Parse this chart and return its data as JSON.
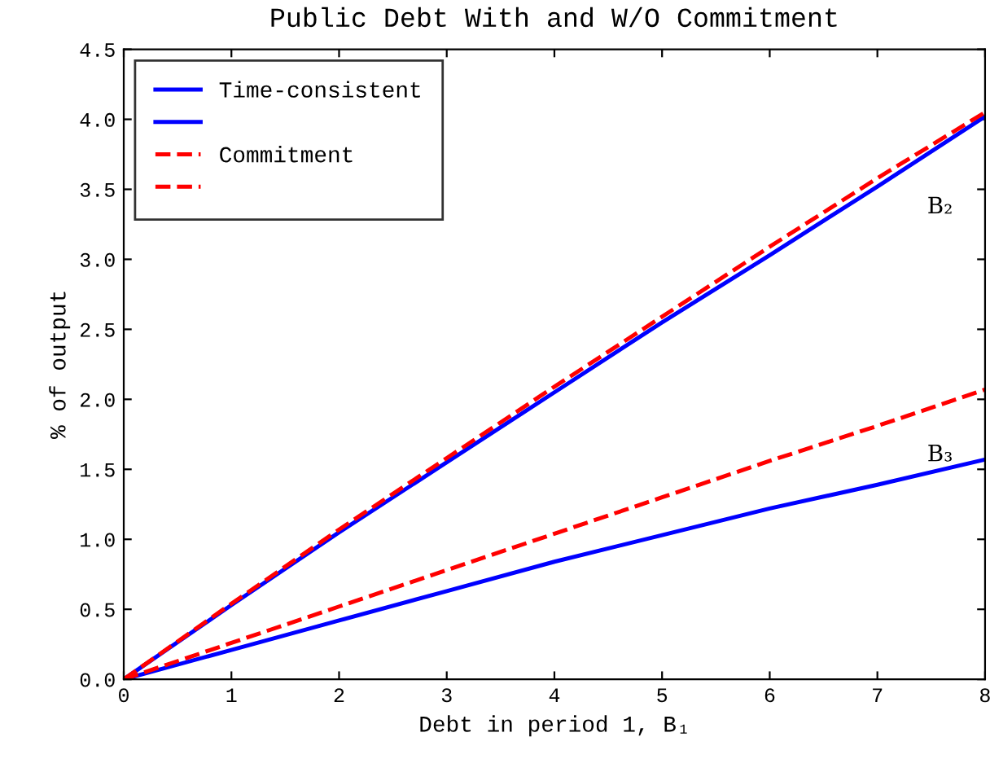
{
  "chart_data": {
    "type": "line",
    "title": "Public Debt With and W/O Commitment",
    "xlabel": "Debt in period 1, B₁",
    "ylabel": "% of output",
    "x": [
      0,
      1,
      2,
      3,
      4,
      5,
      6,
      7,
      8
    ],
    "series": [
      {
        "name": "Time-consistent",
        "color": "#0000ff",
        "line_style": "solid",
        "values": [
          0,
          0.53,
          1.05,
          1.55,
          2.05,
          2.55,
          3.03,
          3.52,
          4.02
        ]
      },
      {
        "color": "#0000ff",
        "line_style": "solid",
        "values": [
          0,
          0.21,
          0.42,
          0.63,
          0.84,
          1.03,
          1.22,
          1.39,
          1.57
        ]
      },
      {
        "name": "Commitment",
        "color": "#ff0000",
        "line_style": "dashed",
        "values": [
          0,
          0.54,
          1.07,
          1.58,
          2.09,
          2.59,
          3.09,
          3.58,
          4.05
        ]
      },
      {
        "color": "#ff0000",
        "line_style": "dashed",
        "values": [
          0,
          0.26,
          0.52,
          0.78,
          1.04,
          1.3,
          1.56,
          1.81,
          2.07
        ]
      }
    ],
    "annotations": [
      "B₂",
      "B₃"
    ],
    "xlim": [
      0,
      8
    ],
    "ylim": [
      0,
      4.5
    ],
    "xticks": [
      0,
      1,
      2,
      3,
      4,
      5,
      6,
      7,
      8
    ],
    "yticks": [
      {
        "value": 0,
        "label": "0.0"
      },
      {
        "value": 0.5,
        "label": "0.5"
      },
      {
        "value": 1,
        "label": "1.0"
      },
      {
        "value": 1.5,
        "label": "1.5"
      },
      {
        "value": 2,
        "label": "2.0"
      },
      {
        "value": 2.5,
        "label": "2.5"
      },
      {
        "value": 3,
        "label": "3.0"
      },
      {
        "value": 3.5,
        "label": "3.5"
      },
      {
        "value": 4,
        "label": "4.0"
      },
      {
        "value": 4.5,
        "label": "4.5"
      }
    ],
    "legend": "top left",
    "grid": false,
    "marker": "none"
  }
}
